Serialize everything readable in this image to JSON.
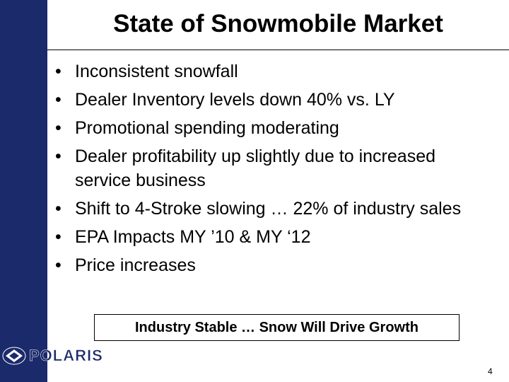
{
  "header": {
    "title": "State of Snowmobile Market"
  },
  "bullets": [
    "Inconsistent snowfall",
    "Dealer Inventory levels down 40% vs. LY",
    "Promotional spending moderating",
    "Dealer profitability up slightly due to increased service business",
    "Shift to 4-Stroke slowing … 22% of industry sales",
    "EPA Impacts MY ’10 & MY ‘12",
    "Price increases"
  ],
  "callout": "Industry Stable … Snow Will Drive Growth",
  "logo": "POLARIS",
  "page_number": "4"
}
